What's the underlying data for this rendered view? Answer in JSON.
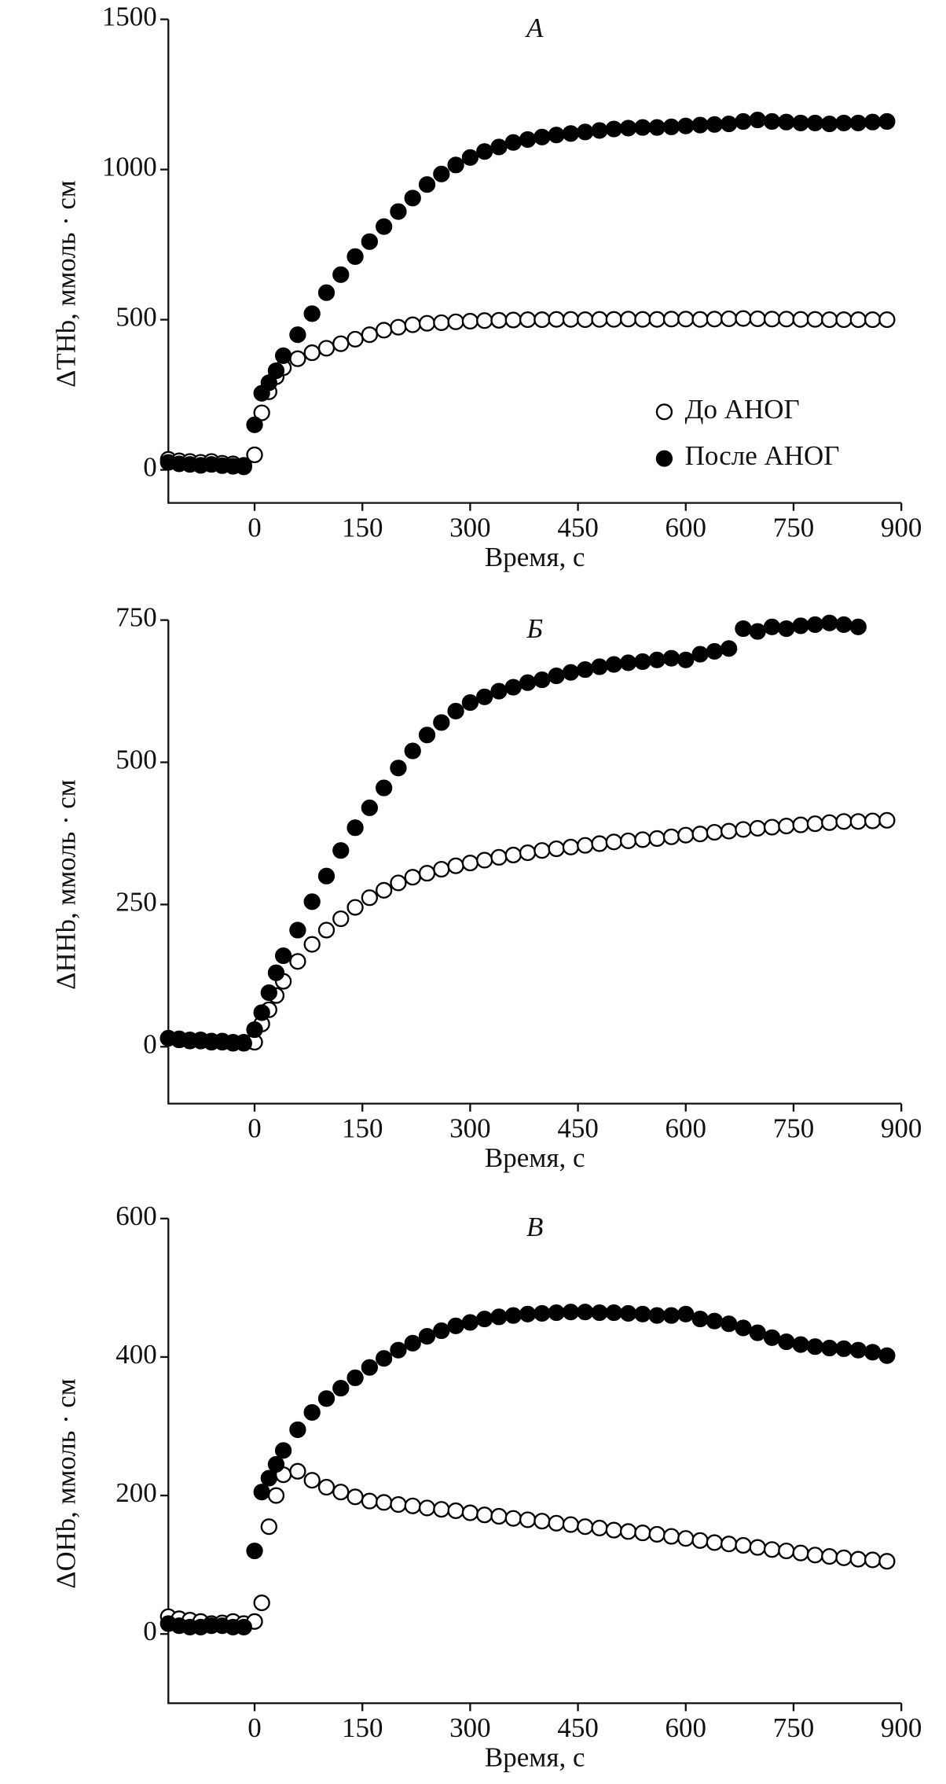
{
  "chart_data": [
    {
      "type": "scatter",
      "title": "А",
      "xlabel": "Время, с",
      "ylabel": "ΔTHb, ммоль · см",
      "xlim": [
        -120,
        900
      ],
      "xticks": [
        0,
        150,
        300,
        450,
        600,
        750,
        900
      ],
      "ylim": [
        -110,
        1500
      ],
      "yticks": [
        0,
        500,
        1000,
        1500
      ],
      "legend": "right",
      "series": [
        {
          "name": "До АНОГ",
          "color": "#000000",
          "marker": "open",
          "x": [
            -120,
            -105,
            -90,
            -75,
            -60,
            -45,
            -30,
            -15,
            0,
            10,
            20,
            30,
            40,
            60,
            80,
            100,
            120,
            140,
            160,
            180,
            200,
            220,
            240,
            260,
            280,
            300,
            320,
            340,
            360,
            380,
            400,
            420,
            440,
            460,
            480,
            500,
            520,
            540,
            560,
            580,
            600,
            620,
            640,
            660,
            680,
            700,
            720,
            740,
            760,
            780,
            800,
            820,
            840,
            860,
            880
          ],
          "values": [
            35,
            30,
            28,
            25,
            28,
            22,
            20,
            15,
            50,
            190,
            260,
            310,
            340,
            370,
            390,
            405,
            420,
            435,
            450,
            465,
            475,
            483,
            488,
            490,
            493,
            495,
            497,
            498,
            499,
            500,
            500,
            501,
            501,
            500,
            501,
            501,
            502,
            501,
            501,
            502,
            502,
            501,
            502,
            503,
            504,
            503,
            502,
            502,
            501,
            501,
            500,
            500,
            500,
            500,
            500
          ]
        },
        {
          "name": "После АНОГ",
          "color": "#000000",
          "marker": "filled",
          "x": [
            -120,
            -105,
            -90,
            -75,
            -60,
            -45,
            -30,
            -15,
            0,
            10,
            20,
            30,
            40,
            60,
            80,
            100,
            120,
            140,
            160,
            180,
            200,
            220,
            240,
            260,
            280,
            300,
            320,
            340,
            360,
            380,
            400,
            420,
            440,
            460,
            480,
            500,
            520,
            540,
            560,
            580,
            600,
            620,
            640,
            660,
            680,
            700,
            720,
            740,
            760,
            780,
            800,
            820,
            840,
            860,
            880
          ],
          "values": [
            25,
            20,
            18,
            15,
            18,
            14,
            12,
            10,
            150,
            255,
            290,
            330,
            380,
            450,
            520,
            590,
            650,
            710,
            760,
            810,
            860,
            905,
            950,
            985,
            1015,
            1040,
            1060,
            1075,
            1090,
            1100,
            1108,
            1115,
            1120,
            1125,
            1130,
            1135,
            1138,
            1140,
            1140,
            1142,
            1145,
            1148,
            1150,
            1152,
            1160,
            1165,
            1160,
            1158,
            1155,
            1155,
            1152,
            1155,
            1155,
            1158,
            1160
          ]
        }
      ]
    },
    {
      "type": "scatter",
      "title": "Б",
      "xlabel": "Время, с",
      "ylabel": "ΔHHb, ммоль · см",
      "xlim": [
        -120,
        900
      ],
      "xticks": [
        0,
        150,
        300,
        450,
        600,
        750,
        900
      ],
      "ylim": [
        -100,
        750
      ],
      "yticks": [
        0,
        250,
        500,
        750
      ],
      "series": [
        {
          "color": "#000000",
          "marker": "open",
          "x": [
            -120,
            -105,
            -90,
            -75,
            -60,
            -45,
            -30,
            -15,
            0,
            10,
            20,
            30,
            40,
            60,
            80,
            100,
            120,
            140,
            160,
            180,
            200,
            220,
            240,
            260,
            280,
            300,
            320,
            340,
            360,
            380,
            400,
            420,
            440,
            460,
            480,
            500,
            520,
            540,
            560,
            580,
            600,
            620,
            640,
            660,
            680,
            700,
            720,
            740,
            760,
            780,
            800,
            820,
            840,
            860,
            880
          ],
          "values": [
            15,
            14,
            12,
            12,
            10,
            10,
            8,
            8,
            8,
            40,
            65,
            90,
            115,
            150,
            180,
            205,
            225,
            245,
            262,
            275,
            288,
            298,
            305,
            312,
            318,
            323,
            328,
            333,
            337,
            341,
            345,
            348,
            351,
            354,
            357,
            360,
            362,
            364,
            366,
            369,
            372,
            374,
            377,
            379,
            382,
            384,
            386,
            388,
            390,
            392,
            394,
            396,
            396,
            397,
            398
          ]
        },
        {
          "color": "#000000",
          "marker": "filled",
          "x": [
            -120,
            -105,
            -90,
            -75,
            -60,
            -45,
            -30,
            -15,
            0,
            10,
            20,
            30,
            40,
            60,
            80,
            100,
            120,
            140,
            160,
            180,
            200,
            220,
            240,
            260,
            280,
            300,
            320,
            340,
            360,
            380,
            400,
            420,
            440,
            460,
            480,
            500,
            520,
            540,
            560,
            580,
            600,
            620,
            640,
            660,
            680,
            700,
            720,
            740,
            760,
            780,
            800,
            820,
            840
          ],
          "values": [
            15,
            12,
            10,
            10,
            8,
            8,
            6,
            6,
            30,
            60,
            95,
            130,
            160,
            205,
            255,
            300,
            345,
            385,
            420,
            455,
            490,
            520,
            548,
            570,
            590,
            605,
            615,
            625,
            632,
            640,
            645,
            652,
            658,
            663,
            668,
            672,
            675,
            677,
            680,
            683,
            680,
            690,
            695,
            700,
            735,
            730,
            738,
            735,
            740,
            742,
            745,
            742,
            738
          ]
        }
      ]
    },
    {
      "type": "scatter",
      "title": "В",
      "xlabel": "Время, с",
      "ylabel": "ΔOHb, ммоль · см",
      "xlim": [
        -120,
        900
      ],
      "xticks": [
        0,
        150,
        300,
        450,
        600,
        750,
        900
      ],
      "ylim": [
        -100,
        600
      ],
      "yticks": [
        0,
        200,
        400,
        600
      ],
      "series": [
        {
          "color": "#000000",
          "marker": "open",
          "x": [
            -120,
            -105,
            -90,
            -75,
            -60,
            -45,
            -30,
            -15,
            0,
            10,
            20,
            30,
            40,
            60,
            80,
            100,
            120,
            140,
            160,
            180,
            200,
            220,
            240,
            260,
            280,
            300,
            320,
            340,
            360,
            380,
            400,
            420,
            440,
            460,
            480,
            500,
            520,
            540,
            560,
            580,
            600,
            620,
            640,
            660,
            680,
            700,
            720,
            740,
            760,
            780,
            800,
            820,
            840,
            860,
            880
          ],
          "values": [
            25,
            22,
            20,
            18,
            15,
            16,
            18,
            15,
            18,
            45,
            155,
            200,
            230,
            235,
            222,
            212,
            205,
            198,
            192,
            190,
            187,
            185,
            182,
            180,
            178,
            175,
            172,
            170,
            167,
            165,
            163,
            160,
            158,
            155,
            153,
            150,
            148,
            146,
            144,
            141,
            138,
            135,
            132,
            130,
            128,
            125,
            122,
            120,
            117,
            114,
            112,
            110,
            108,
            107,
            105
          ]
        },
        {
          "color": "#000000",
          "marker": "filled",
          "x": [
            -120,
            -105,
            -90,
            -75,
            -60,
            -45,
            -30,
            -15,
            0,
            10,
            20,
            30,
            40,
            60,
            80,
            100,
            120,
            140,
            160,
            180,
            200,
            220,
            240,
            260,
            280,
            300,
            320,
            340,
            360,
            380,
            400,
            420,
            440,
            460,
            480,
            500,
            520,
            540,
            560,
            580,
            600,
            620,
            640,
            660,
            680,
            700,
            720,
            740,
            760,
            780,
            800,
            820,
            840,
            860,
            880
          ],
          "values": [
            15,
            12,
            10,
            10,
            12,
            12,
            10,
            10,
            120,
            205,
            225,
            245,
            265,
            295,
            320,
            340,
            355,
            370,
            385,
            398,
            410,
            420,
            430,
            438,
            445,
            450,
            455,
            458,
            460,
            462,
            463,
            464,
            465,
            465,
            464,
            464,
            463,
            462,
            460,
            460,
            462,
            455,
            452,
            448,
            442,
            435,
            428,
            422,
            418,
            415,
            413,
            412,
            410,
            407,
            402
          ]
        }
      ]
    }
  ]
}
